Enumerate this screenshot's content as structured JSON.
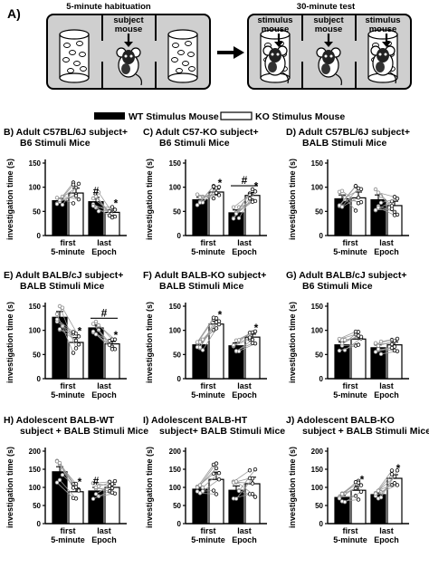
{
  "figure_label": "A)",
  "schematic": {
    "habituation_title": "5-minute habituation",
    "test_title": "30-minute test",
    "subject_label": "subject\nmouse",
    "stimulus_label": "stimulus\nmouse"
  },
  "legend": {
    "wt": "WT Stimulus Mouse",
    "ko": "KO Stimulus Mouse"
  },
  "shared_axis": {
    "ylabel": "investigation time (s)",
    "xlabels": [
      "first",
      "last"
    ],
    "xsub": [
      "5-minute",
      "Epoch"
    ]
  },
  "chart_data": [
    {
      "type": "bar",
      "panel": "B)",
      "title": [
        "Adult C57BL/6J subject+",
        "B6 Stimuli Mice"
      ],
      "ylabel": "investigation time (s)",
      "ylim": [
        0,
        150
      ],
      "yticks": [
        0,
        50,
        100,
        150
      ],
      "categories": [
        "first 5-minute",
        "last Epoch"
      ],
      "series": [
        {
          "name": "WT Stimulus Mouse",
          "values": [
            72,
            70
          ],
          "errors": [
            4,
            9
          ]
        },
        {
          "name": "KO Stimulus Mouse",
          "values": [
            88,
            48
          ],
          "errors": [
            10,
            5
          ]
        }
      ],
      "annotations": [
        {
          "text": "*",
          "group": 1,
          "bar": 1
        },
        {
          "text": "#",
          "group": 1,
          "bar": 0
        }
      ]
    },
    {
      "type": "bar",
      "panel": "C)",
      "title": [
        "Adult C57-KO subject+",
        "B6 Stimuli Mice"
      ],
      "ylabel": "investigation time (s)",
      "ylim": [
        0,
        150
      ],
      "yticks": [
        0,
        50,
        100,
        150
      ],
      "categories": [
        "first 5-minute",
        "last Epoch"
      ],
      "series": [
        {
          "name": "WT Stimulus Mouse",
          "values": [
            74,
            47
          ],
          "errors": [
            5,
            6
          ]
        },
        {
          "name": "KO Stimulus Mouse",
          "values": [
            90,
            83
          ],
          "errors": [
            6,
            6
          ]
        }
      ],
      "annotations": [
        {
          "text": "*",
          "group": 0,
          "bar": 1
        },
        {
          "text": "*",
          "group": 1,
          "bar": 1
        },
        {
          "text": "#",
          "group": 1,
          "bar": "line"
        }
      ]
    },
    {
      "type": "bar",
      "panel": "D)",
      "title": [
        "Adult C57BL/6J subject+",
        "BALB Stimuli Mice"
      ],
      "ylabel": "investigation time (s)",
      "ylim": [
        0,
        150
      ],
      "yticks": [
        0,
        50,
        100,
        150
      ],
      "categories": [
        "first 5-minute",
        "last Epoch"
      ],
      "series": [
        {
          "name": "WT Stimulus Mouse",
          "values": [
            76,
            74
          ],
          "errors": [
            8,
            10
          ]
        },
        {
          "name": "KO Stimulus Mouse",
          "values": [
            78,
            62
          ],
          "errors": [
            12,
            9
          ]
        }
      ],
      "annotations": []
    },
    {
      "type": "bar",
      "panel": "E)",
      "title": [
        "Adult BALB/cJ subject+",
        "BALB Stimuli Mice"
      ],
      "ylabel": "investigation time (s)",
      "ylim": [
        0,
        150
      ],
      "yticks": [
        0,
        50,
        100,
        150
      ],
      "categories": [
        "first 5-minute",
        "last Epoch"
      ],
      "series": [
        {
          "name": "WT Stimulus Mouse",
          "values": [
            127,
            105
          ],
          "errors": [
            12,
            6
          ]
        },
        {
          "name": "KO Stimulus Mouse",
          "values": [
            75,
            72
          ],
          "errors": [
            10,
            5
          ]
        }
      ],
      "annotations": [
        {
          "text": "*",
          "group": 0,
          "bar": 1
        },
        {
          "text": "*",
          "group": 1,
          "bar": 1
        },
        {
          "text": "#",
          "group": 1,
          "bar": "line"
        }
      ]
    },
    {
      "type": "bar",
      "panel": "F)",
      "title": [
        "Adult BALB-KO subject+",
        "BALB Stimuli Mice"
      ],
      "ylabel": "investigation time (s)",
      "ylim": [
        0,
        150
      ],
      "yticks": [
        0,
        50,
        100,
        150
      ],
      "categories": [
        "first 5-minute",
        "last Epoch"
      ],
      "series": [
        {
          "name": "WT Stimulus Mouse",
          "values": [
            70,
            68
          ],
          "errors": [
            5,
            6
          ]
        },
        {
          "name": "KO Stimulus Mouse",
          "values": [
            113,
            86
          ],
          "errors": [
            6,
            6
          ]
        }
      ],
      "annotations": [
        {
          "text": "*",
          "group": 0,
          "bar": 1
        },
        {
          "text": "*",
          "group": 1,
          "bar": 1
        }
      ]
    },
    {
      "type": "bar",
      "panel": "G)",
      "title": [
        "Adult BALB/cJ subject+",
        "B6 Stimuli Mice"
      ],
      "ylabel": "investigation time (s)",
      "ylim": [
        0,
        150
      ],
      "yticks": [
        0,
        50,
        100,
        150
      ],
      "categories": [
        "first 5-minute",
        "last Epoch"
      ],
      "series": [
        {
          "name": "WT Stimulus Mouse",
          "values": [
            70,
            64
          ],
          "errors": [
            6,
            6
          ]
        },
        {
          "name": "KO Stimulus Mouse",
          "values": [
            82,
            70
          ],
          "errors": [
            7,
            6
          ]
        }
      ],
      "annotations": []
    },
    {
      "type": "bar",
      "panel": "H)",
      "title": [
        "Adolescent BALB-WT",
        "subject + BALB Stimuli Mice"
      ],
      "ylabel": "investigation time (s)",
      "ylim": [
        0,
        200
      ],
      "yticks": [
        0,
        50,
        100,
        150,
        200
      ],
      "categories": [
        "first 5-minute",
        "last Epoch"
      ],
      "series": [
        {
          "name": "WT Stimulus Mouse",
          "values": [
            143,
            90
          ],
          "errors": [
            14,
            10
          ]
        },
        {
          "name": "KO Stimulus Mouse",
          "values": [
            88,
            100
          ],
          "errors": [
            10,
            8
          ]
        }
      ],
      "annotations": [
        {
          "text": "*",
          "group": 0,
          "bar": 1
        },
        {
          "text": "#",
          "group": 1,
          "bar": 0
        }
      ]
    },
    {
      "type": "bar",
      "panel": "I)",
      "title": [
        "Adolescent BALB-HT",
        "subject+ BALB Stimuli Mice"
      ],
      "ylabel": "investigation time (s)",
      "ylim": [
        0,
        200
      ],
      "yticks": [
        0,
        50,
        100,
        150,
        200
      ],
      "categories": [
        "first 5-minute",
        "last Epoch"
      ],
      "series": [
        {
          "name": "WT Stimulus Mouse",
          "values": [
            95,
            92
          ],
          "errors": [
            5,
            12
          ]
        },
        {
          "name": "KO Stimulus Mouse",
          "values": [
            122,
            110
          ],
          "errors": [
            20,
            18
          ]
        }
      ],
      "annotations": []
    },
    {
      "type": "bar",
      "panel": "J)",
      "title": [
        "Adolescent BALB-KO",
        "subject + BALB Stimuli Mice"
      ],
      "ylabel": "investigation time (s)",
      "ylim": [
        0,
        200
      ],
      "yticks": [
        0,
        50,
        100,
        150,
        200
      ],
      "categories": [
        "first 5-minute",
        "last Epoch"
      ],
      "series": [
        {
          "name": "WT Stimulus Mouse",
          "values": [
            72,
            80
          ],
          "errors": [
            6,
            5
          ]
        },
        {
          "name": "KO Stimulus Mouse",
          "values": [
            92,
            125
          ],
          "errors": [
            12,
            10
          ]
        }
      ],
      "annotations": [
        {
          "text": "*",
          "group": 0,
          "bar": 1
        },
        {
          "text": "*",
          "group": 1,
          "bar": 1
        }
      ]
    }
  ]
}
